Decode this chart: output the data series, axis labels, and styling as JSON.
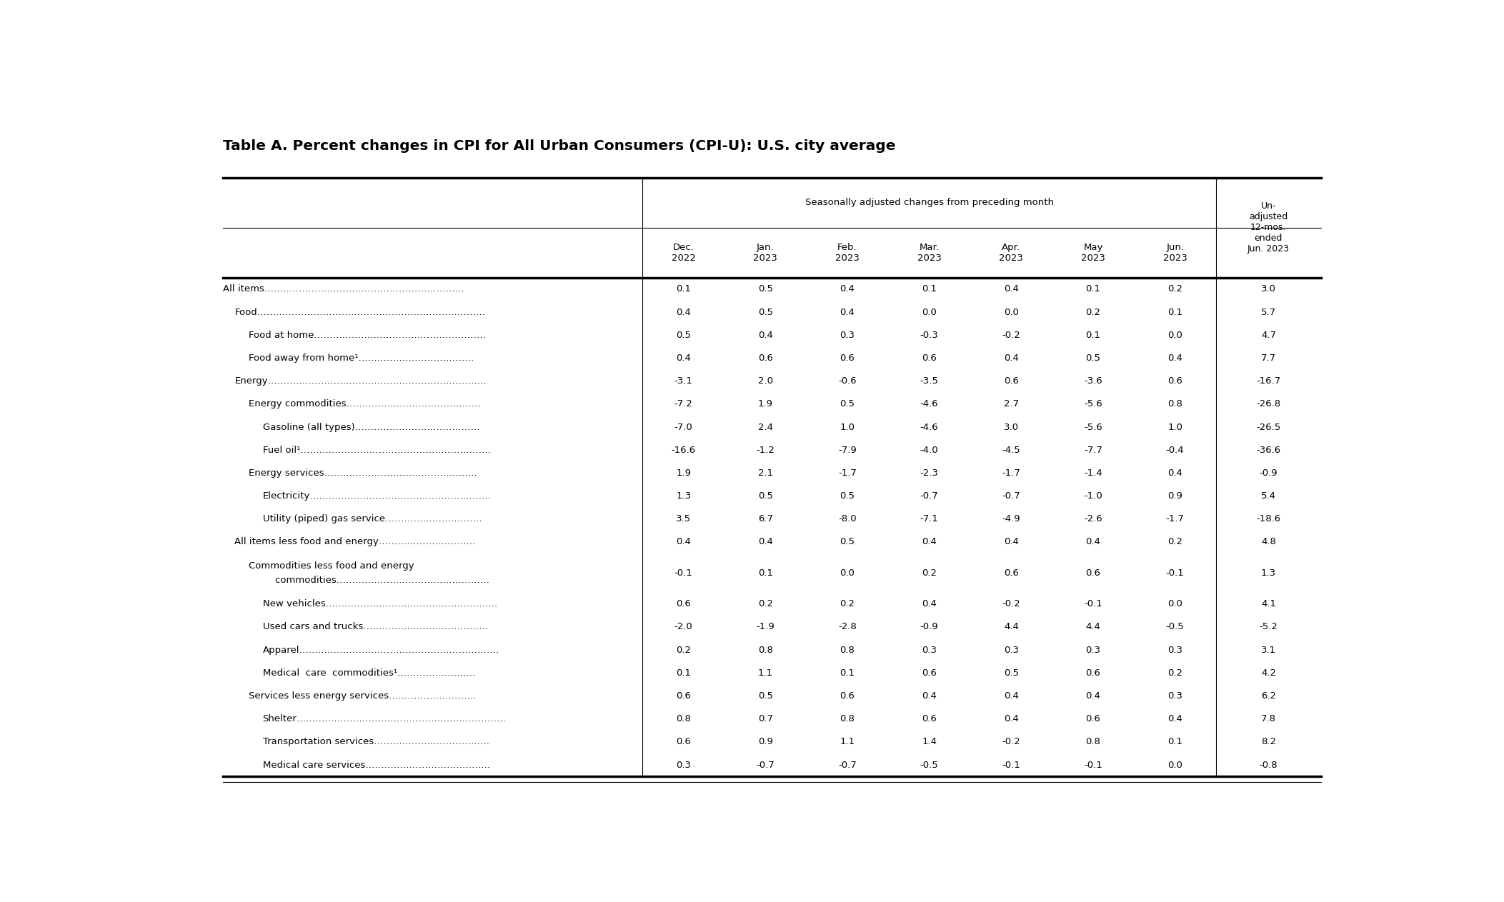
{
  "title": "Table A. Percent changes in CPI for All Urban Consumers (CPI-U): U.S. city average",
  "header_group": "Seasonally adjusted changes from preceding month",
  "last_col_header": "Un-\nadjusted\n12-mos.\nended\nJun. 2023",
  "col_headers": [
    "Dec.\n2022",
    "Jan.\n2023",
    "Feb.\n2023",
    "Mar.\n2023",
    "Apr.\n2023",
    "May\n2023",
    "Jun.\n2023"
  ],
  "rows": [
    {
      "label": "All items……………………………………………………….",
      "indent": 0,
      "values": [
        0.1,
        0.5,
        0.4,
        0.1,
        0.4,
        0.1,
        0.2,
        3.0
      ]
    },
    {
      "label": "Food……………………………………………………………….",
      "indent": 1,
      "values": [
        0.4,
        0.5,
        0.4,
        0.0,
        0.0,
        0.2,
        0.1,
        5.7
      ]
    },
    {
      "label": "Food at home……………………………………………….",
      "indent": 2,
      "values": [
        0.5,
        0.4,
        0.3,
        -0.3,
        -0.2,
        0.1,
        0.0,
        4.7
      ]
    },
    {
      "label": "Food away from home¹……………………………….",
      "indent": 2,
      "values": [
        0.4,
        0.6,
        0.6,
        0.6,
        0.4,
        0.5,
        0.4,
        7.7
      ]
    },
    {
      "label": "Energy…………………………………………………………….",
      "indent": 1,
      "values": [
        -3.1,
        2.0,
        -0.6,
        -3.5,
        0.6,
        -3.6,
        0.6,
        -16.7
      ]
    },
    {
      "label": "Energy commodities…………………………………….",
      "indent": 2,
      "values": [
        -7.2,
        1.9,
        0.5,
        -4.6,
        2.7,
        -5.6,
        0.8,
        -26.8
      ]
    },
    {
      "label": "Gasoline (all types)………………………………….",
      "indent": 3,
      "values": [
        -7.0,
        2.4,
        1.0,
        -4.6,
        3.0,
        -5.6,
        1.0,
        -26.5
      ]
    },
    {
      "label": "Fuel oil¹…………………………………………………….",
      "indent": 3,
      "values": [
        -16.6,
        -1.2,
        -7.9,
        -4.0,
        -4.5,
        -7.7,
        -0.4,
        -36.6
      ]
    },
    {
      "label": "Energy services………………………………………….",
      "indent": 2,
      "values": [
        1.9,
        2.1,
        -1.7,
        -2.3,
        -1.7,
        -1.4,
        0.4,
        -0.9
      ]
    },
    {
      "label": "Electricity………………………………………………….",
      "indent": 3,
      "values": [
        1.3,
        0.5,
        0.5,
        -0.7,
        -0.7,
        -1.0,
        0.9,
        5.4
      ]
    },
    {
      "label": "Utility (piped) gas service………………………….",
      "indent": 3,
      "values": [
        3.5,
        6.7,
        -8.0,
        -7.1,
        -4.9,
        -2.6,
        -1.7,
        -18.6
      ]
    },
    {
      "label": "All items less food and energy………………………….",
      "indent": 1,
      "values": [
        0.4,
        0.4,
        0.5,
        0.4,
        0.4,
        0.4,
        0.2,
        4.8
      ]
    },
    {
      "label": "Commodities less food and energy\n    commodities………………………………………….",
      "indent": 2,
      "values": [
        -0.1,
        0.1,
        0.0,
        0.2,
        0.6,
        0.6,
        -0.1,
        1.3
      ]
    },
    {
      "label": "New vehicles……………………………………………….",
      "indent": 3,
      "values": [
        0.6,
        0.2,
        0.2,
        0.4,
        -0.2,
        -0.1,
        0.0,
        4.1
      ]
    },
    {
      "label": "Used cars and trucks………………………………….",
      "indent": 3,
      "values": [
        -2.0,
        -1.9,
        -2.8,
        -0.9,
        4.4,
        4.4,
        -0.5,
        -5.2
      ]
    },
    {
      "label": "Apparel……………………………………………………….",
      "indent": 3,
      "values": [
        0.2,
        0.8,
        0.8,
        0.3,
        0.3,
        0.3,
        0.3,
        3.1
      ]
    },
    {
      "label": "Medical  care  commodities¹…………………….",
      "indent": 3,
      "values": [
        0.1,
        1.1,
        0.1,
        0.6,
        0.5,
        0.6,
        0.2,
        4.2
      ]
    },
    {
      "label": "Services less energy services……………………….",
      "indent": 2,
      "values": [
        0.6,
        0.5,
        0.6,
        0.4,
        0.4,
        0.4,
        0.3,
        6.2
      ]
    },
    {
      "label": "Shelter………………………………………………………….",
      "indent": 3,
      "values": [
        0.8,
        0.7,
        0.8,
        0.6,
        0.4,
        0.6,
        0.4,
        7.8
      ]
    },
    {
      "label": "Transportation services……………………………….",
      "indent": 3,
      "values": [
        0.6,
        0.9,
        1.1,
        1.4,
        -0.2,
        0.8,
        0.1,
        8.2
      ]
    },
    {
      "label": "Medical care services………………………………….",
      "indent": 3,
      "values": [
        0.3,
        -0.7,
        -0.7,
        -0.5,
        -0.1,
        -0.1,
        0.0,
        -0.8
      ]
    }
  ],
  "bg_color": "#ffffff",
  "text_color": "#000000",
  "line_color": "#000000",
  "title_fontsize": 14.5,
  "header_fontsize": 9.5,
  "cell_fontsize": 9.5
}
